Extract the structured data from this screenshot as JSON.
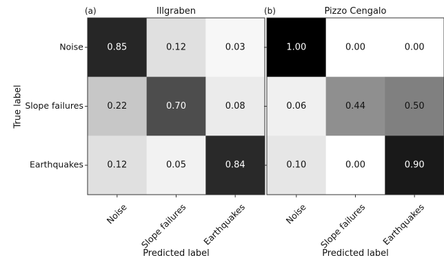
{
  "chart_data": [
    {
      "type": "heatmap",
      "panel_label": "(a)",
      "title": "Illgraben",
      "xlabel": "Predicted label",
      "ylabel": "True label",
      "x_categories": [
        "Noise",
        "Slope failures",
        "Earthquakes"
      ],
      "y_categories": [
        "Noise",
        "Slope failures",
        "Earthquakes"
      ],
      "value_range": [
        0,
        1
      ],
      "colormap": "greys",
      "values": [
        [
          0.85,
          0.12,
          0.03
        ],
        [
          0.22,
          0.7,
          0.08
        ],
        [
          0.12,
          0.05,
          0.84
        ]
      ],
      "labels": [
        [
          "0.85",
          "0.12",
          "0.03"
        ],
        [
          "0.22",
          "0.70",
          "0.08"
        ],
        [
          "0.12",
          "0.05",
          "0.84"
        ]
      ]
    },
    {
      "type": "heatmap",
      "panel_label": "(b)",
      "title": "Pizzo Cengalo",
      "xlabel": "Predicted label",
      "ylabel": "",
      "x_categories": [
        "Noise",
        "Slope failures",
        "Earthquakes"
      ],
      "y_categories": [
        "Noise",
        "Slope failures",
        "Earthquakes"
      ],
      "value_range": [
        0,
        1
      ],
      "colormap": "greys",
      "values": [
        [
          1.0,
          0.0,
          0.0
        ],
        [
          0.06,
          0.44,
          0.5
        ],
        [
          0.1,
          0.0,
          0.9
        ]
      ],
      "labels": [
        [
          "1.00",
          "0.00",
          "0.00"
        ],
        [
          "0.06",
          "0.44",
          "0.50"
        ],
        [
          "0.10",
          "0.00",
          "0.90"
        ]
      ]
    }
  ]
}
